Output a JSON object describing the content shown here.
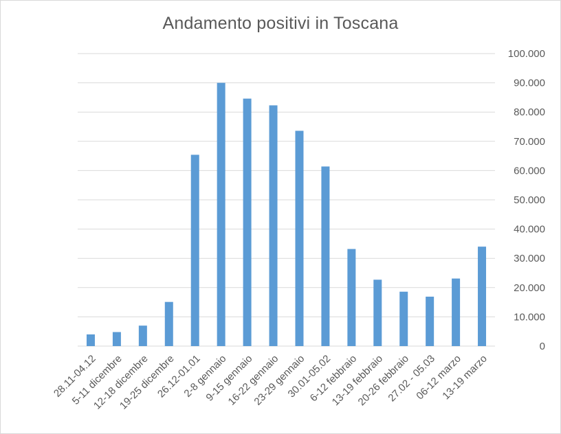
{
  "chart_data": {
    "type": "bar",
    "title": "Andamento positivi in Toscana",
    "xlabel": "",
    "ylabel": "",
    "categories": [
      "28.11-04.12",
      "5-11 dicembre",
      "12-18 dicembre",
      "19-25 dicembre",
      "26.12-01.01",
      "2-8 gennaio",
      "9-15 gennaio",
      "16-22 gennaio",
      "23-29 gennaio",
      "30.01-05.02",
      "6-12 febbraio",
      "13-19 febbraio",
      "20-26 febbraio",
      "27.02 - 05.03",
      "06-12 marzo",
      "13-19 marzo"
    ],
    "values": [
      4000,
      4800,
      7000,
      15100,
      65400,
      90000,
      84600,
      82300,
      73600,
      61400,
      33200,
      22700,
      18600,
      16900,
      23100,
      34000
    ],
    "ylim": [
      0,
      100000
    ],
    "yticks": [
      "0",
      "10.000",
      "20.000",
      "30.000",
      "40.000",
      "50.000",
      "60.000",
      "70.000",
      "80.000",
      "90.000",
      "100.000"
    ],
    "y_axis_position": "right",
    "grid": true,
    "legend": "none",
    "bar_color": "#5b9bd5",
    "grid_color": "#d9d9d9"
  }
}
